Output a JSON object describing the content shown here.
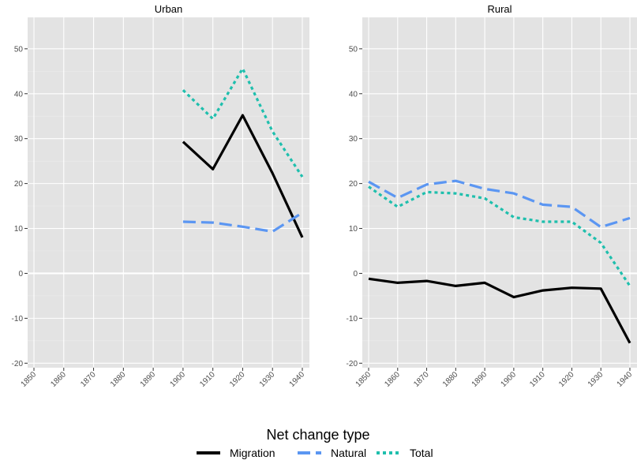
{
  "chart_data": {
    "type": "line",
    "x": [
      1850,
      1860,
      1870,
      1880,
      1890,
      1900,
      1910,
      1920,
      1930,
      1940
    ],
    "ylim": [
      -21,
      57
    ],
    "yticks": [
      -20,
      -10,
      0,
      10,
      20,
      30,
      40,
      50
    ],
    "grid": true,
    "legend": {
      "title": "Net change type",
      "placement": "bottom",
      "entries": [
        {
          "name": "Migration",
          "color": "#000000",
          "dash": "solid"
        },
        {
          "name": "Natural",
          "color": "#5b96f2",
          "dash": "dashed"
        },
        {
          "name": "Total",
          "color": "#1fbfad",
          "dash": "dotted"
        }
      ]
    },
    "panels": [
      {
        "title": "Urban",
        "series": [
          {
            "name": "Migration",
            "values": [
              null,
              null,
              null,
              null,
              null,
              29.3,
              23.2,
              35.2,
              22.3,
              8.0
            ]
          },
          {
            "name": "Natural",
            "values": [
              null,
              null,
              null,
              null,
              null,
              11.5,
              11.3,
              10.4,
              9.3,
              13.5
            ]
          },
          {
            "name": "Total",
            "values": [
              null,
              null,
              null,
              null,
              null,
              40.8,
              34.4,
              45.6,
              31.6,
              21.5
            ]
          }
        ]
      },
      {
        "title": "Rural",
        "series": [
          {
            "name": "Migration",
            "values": [
              -1.2,
              -2.1,
              -1.7,
              -2.8,
              -2.1,
              -5.3,
              -3.8,
              -3.2,
              -3.4,
              -15.5
            ]
          },
          {
            "name": "Natural",
            "values": [
              20.4,
              16.8,
              19.8,
              20.6,
              18.8,
              17.8,
              15.3,
              14.8,
              10.3,
              12.3
            ]
          },
          {
            "name": "Total",
            "values": [
              19.3,
              14.8,
              18.1,
              17.8,
              16.7,
              12.5,
              11.5,
              11.5,
              6.8,
              -2.8
            ]
          }
        ]
      }
    ]
  }
}
